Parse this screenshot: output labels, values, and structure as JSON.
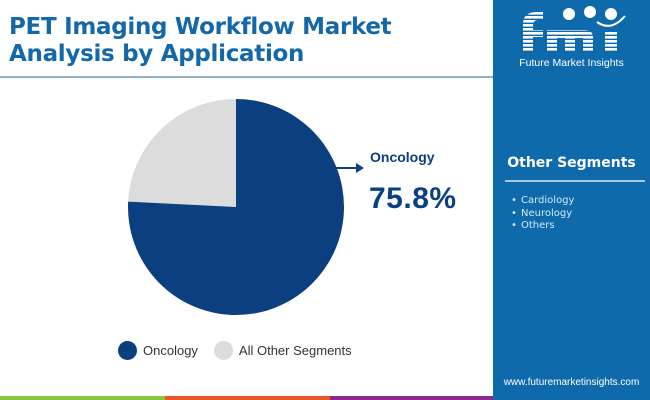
{
  "header": {
    "title": "PET Imaging Workflow Market Analysis by Application"
  },
  "brand": {
    "logo_text": "fmi",
    "tagline": "Future Market Insights",
    "url": "www.futuremarketinsights.com"
  },
  "side_panel": {
    "title": "Other Segments",
    "items": [
      "Cardiology",
      "Neurology",
      "Others"
    ],
    "bullet": "•"
  },
  "callout": {
    "label": "Oncology",
    "value": "75.8%"
  },
  "legend": [
    {
      "label": "Oncology",
      "color": "#0b3f80"
    },
    {
      "label": "All Other Segments",
      "color": "#dcdcdc"
    }
  ],
  "colors": {
    "title": "#1467a8",
    "panel": "#0f6aac",
    "oncology": "#0b3f80",
    "other": "#dcdcdc",
    "footer_green": "#8cc63f",
    "footer_orange": "#e8562a",
    "footer_purple": "#8a2a8c"
  },
  "chart_data": {
    "type": "pie",
    "title": "PET Imaging Workflow Market Analysis by Application",
    "categories": [
      "Oncology",
      "All Other Segments"
    ],
    "values": [
      75.8,
      24.2
    ],
    "units": "%",
    "annotations": [
      {
        "label": "Oncology",
        "value": "75.8%"
      }
    ],
    "legend_position": "bottom"
  }
}
